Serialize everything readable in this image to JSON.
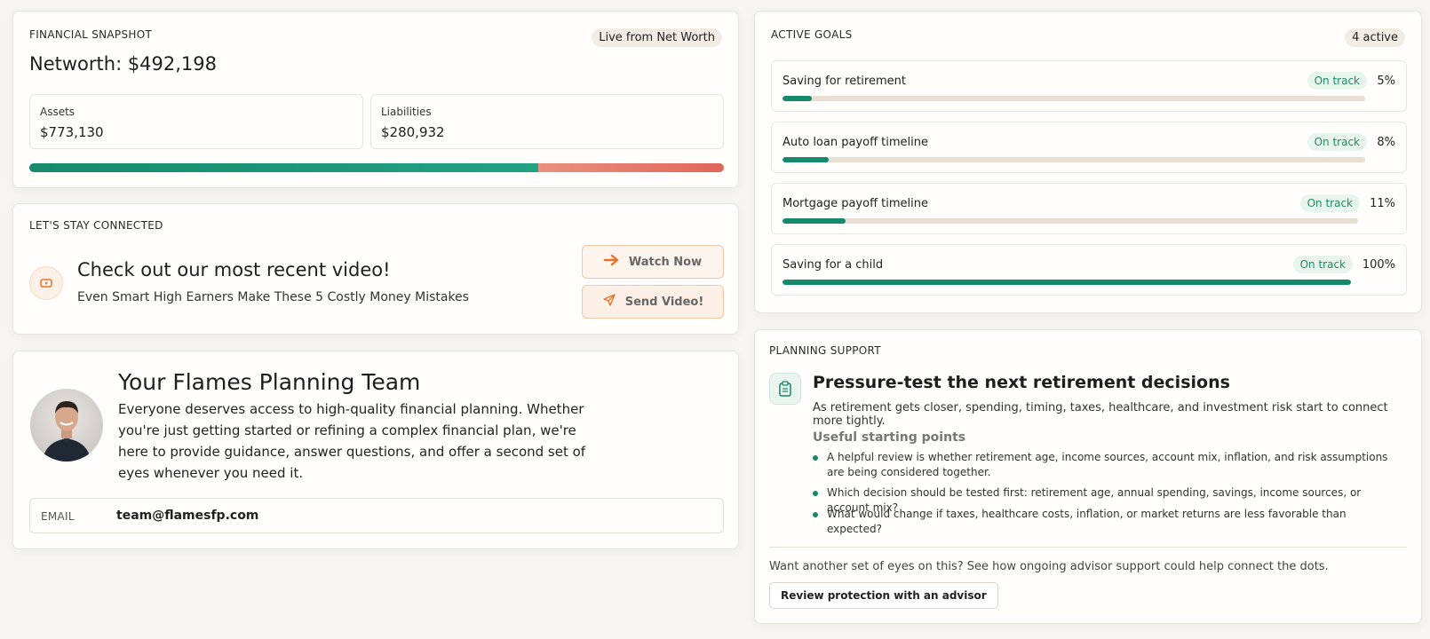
{
  "snapshot": {
    "eyebrow": "FINANCIAL SNAPSHOT",
    "badge": "Live from Net Worth",
    "title": "Networth: $492,198",
    "assets_label": "Assets",
    "assets_value": "$773,130",
    "liabilities_label": "Liabilities",
    "liabilities_value": "$280,932",
    "assets_share": 0.733
  },
  "video": {
    "eyebrow": "LET'S STAY CONNECTED",
    "headline": "Check out our most recent video!",
    "subtitle": "Even Smart High Earners Make These 5 Costly Money Mistakes",
    "watch_label": "Watch Now",
    "send_label": "Send Video!",
    "icon": "play-icon"
  },
  "team": {
    "headline": "Your Flames Planning Team",
    "body": "Everyone deserves access to high-quality financial planning. Whether you're just getting started or refining a complex financial plan, we're here to provide guidance, answer questions, and offer a second set of eyes whenever you need it.",
    "email_label": "EMAIL",
    "email_value": "team@flamesfp.com"
  },
  "goals": {
    "eyebrow": "ACTIVE GOALS",
    "count_badge": "4 active",
    "items": [
      {
        "name": "Saving for retirement",
        "status": "On track",
        "percent": "5%",
        "progress": 0.05
      },
      {
        "name": "Auto loan payoff timeline",
        "status": "On track",
        "percent": "8%",
        "progress": 0.08
      },
      {
        "name": "Mortgage payoff timeline",
        "status": "On track",
        "percent": "11%",
        "progress": 0.11
      },
      {
        "name": "Saving for a child",
        "status": "On track",
        "percent": "100%",
        "progress": 1.0
      }
    ]
  },
  "planning": {
    "eyebrow": "PLANNING SUPPORT",
    "headline": "Pressure-test the next retirement decisions",
    "subtitle": "As retirement gets closer, spending, timing, taxes, healthcare, and investment risk start to connect more tightly.",
    "subhead": "Useful starting points",
    "points": [
      "A helpful review is whether retirement age, income sources, account mix, inflation, and risk assumptions are being considered together.",
      "Which decision should be tested first: retirement age, annual spending, savings, income sources, or account mix?",
      "What would change if taxes, healthcare costs, inflation, or market returns are less favorable than expected?"
    ],
    "footer_note": "Want another set of eyes on this? See how ongoing advisor support could help connect the dots.",
    "button_label": "Review protection with an advisor",
    "icon": "clipboard-icon"
  },
  "colors": {
    "green": "#16896a",
    "red": "#df665a",
    "orange": "#e8742a"
  }
}
